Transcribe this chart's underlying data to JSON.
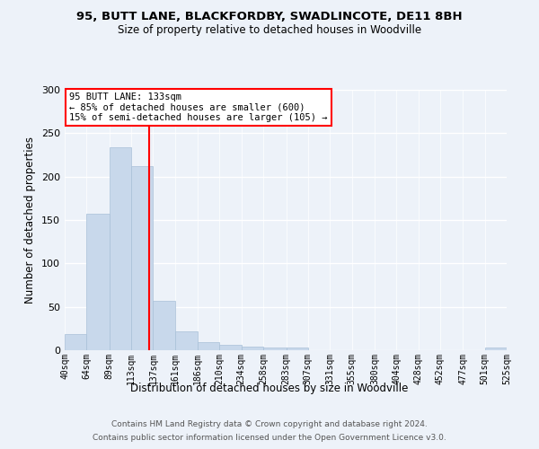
{
  "title1": "95, BUTT LANE, BLACKFORDBY, SWADLINCOTE, DE11 8BH",
  "title2": "Size of property relative to detached houses in Woodville",
  "xlabel": "Distribution of detached houses by size in Woodville",
  "ylabel": "Number of detached properties",
  "bar_color": "#c8d8eb",
  "bar_edge_color": "#a8c0d8",
  "vline_color": "red",
  "vline_x": 133,
  "annotation_title": "95 BUTT LANE: 133sqm",
  "annotation_line1": "← 85% of detached houses are smaller (600)",
  "annotation_line2": "15% of semi-detached houses are larger (105) →",
  "footer1": "Contains HM Land Registry data © Crown copyright and database right 2024.",
  "footer2": "Contains public sector information licensed under the Open Government Licence v3.0.",
  "bin_edges": [
    40,
    64,
    89,
    113,
    137,
    161,
    186,
    210,
    234,
    258,
    283,
    307,
    331,
    355,
    380,
    404,
    428,
    452,
    477,
    501,
    525
  ],
  "bar_heights": [
    19,
    157,
    234,
    212,
    57,
    22,
    9,
    6,
    4,
    3,
    3,
    0,
    0,
    0,
    0,
    0,
    0,
    0,
    0,
    3
  ],
  "ylim": [
    0,
    300
  ],
  "yticks": [
    0,
    50,
    100,
    150,
    200,
    250,
    300
  ],
  "background_color": "#edf2f9",
  "grid_color": "#ffffff",
  "axes_bg_color": "#edf2f9"
}
